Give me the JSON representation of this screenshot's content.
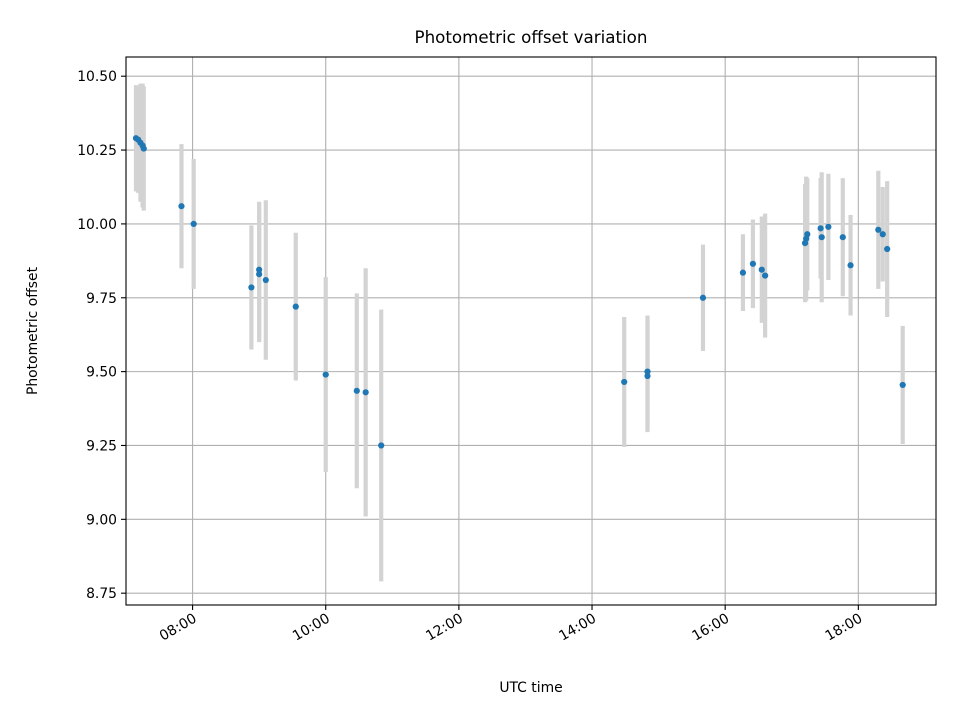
{
  "chart_data": {
    "type": "scatter",
    "title": "Photometric offset variation",
    "xlabel": "UTC time",
    "ylabel": "Photometric offset",
    "xlim": [
      "07:00",
      "19:10"
    ],
    "ylim": [
      8.71,
      10.565
    ],
    "x_ticks": [
      "08:00",
      "10:00",
      "12:00",
      "14:00",
      "16:00",
      "18:00"
    ],
    "y_ticks": [
      "8.75",
      "9.00",
      "9.25",
      "9.50",
      "9.75",
      "10.00",
      "10.25",
      "10.50"
    ],
    "grid": true,
    "colors": {
      "points": "#1f77b4",
      "error_bars": "#d3d3d3",
      "grid": "#b0b0b0"
    },
    "series": [
      {
        "points": [
          {
            "x": "07:09",
            "y": 10.29,
            "yerr": 0.18
          },
          {
            "x": "07:11",
            "y": 10.285,
            "yerr": 0.18
          },
          {
            "x": "07:13",
            "y": 10.275,
            "yerr": 0.2
          },
          {
            "x": "07:15",
            "y": 10.265,
            "yerr": 0.21
          },
          {
            "x": "07:16",
            "y": 10.255,
            "yerr": 0.21
          },
          {
            "x": "07:50",
            "y": 10.06,
            "yerr": 0.21
          },
          {
            "x": "08:01",
            "y": 10.0,
            "yerr": 0.22
          },
          {
            "x": "08:53",
            "y": 9.785,
            "yerr": 0.21
          },
          {
            "x": "09:00",
            "y": 9.845,
            "yerr": 0.23
          },
          {
            "x": "09:00",
            "y": 9.83,
            "yerr": 0.23
          },
          {
            "x": "09:06",
            "y": 9.81,
            "yerr": 0.27
          },
          {
            "x": "09:33",
            "y": 9.72,
            "yerr": 0.25
          },
          {
            "x": "10:00",
            "y": 9.49,
            "yerr": 0.33
          },
          {
            "x": "10:28",
            "y": 9.435,
            "yerr": 0.33
          },
          {
            "x": "10:36",
            "y": 9.43,
            "yerr": 0.42
          },
          {
            "x": "10:50",
            "y": 9.25,
            "yerr": 0.46
          },
          {
            "x": "14:29",
            "y": 9.465,
            "yerr": 0.22
          },
          {
            "x": "14:50",
            "y": 9.5,
            "yerr": 0.19
          },
          {
            "x": "14:50",
            "y": 9.485,
            "yerr": 0.19
          },
          {
            "x": "15:40",
            "y": 9.75,
            "yerr": 0.18
          },
          {
            "x": "16:16",
            "y": 9.835,
            "yerr": 0.13
          },
          {
            "x": "16:25",
            "y": 9.865,
            "yerr": 0.15
          },
          {
            "x": "16:33",
            "y": 9.845,
            "yerr": 0.18
          },
          {
            "x": "16:36",
            "y": 9.825,
            "yerr": 0.21
          },
          {
            "x": "17:12",
            "y": 9.935,
            "yerr": 0.2
          },
          {
            "x": "17:13",
            "y": 9.95,
            "yerr": 0.21
          },
          {
            "x": "17:14",
            "y": 9.965,
            "yerr": 0.19
          },
          {
            "x": "17:26",
            "y": 9.985,
            "yerr": 0.17
          },
          {
            "x": "17:27",
            "y": 9.955,
            "yerr": 0.22
          },
          {
            "x": "17:33",
            "y": 9.99,
            "yerr": 0.18
          },
          {
            "x": "17:46",
            "y": 9.955,
            "yerr": 0.2
          },
          {
            "x": "17:53",
            "y": 9.86,
            "yerr": 0.17
          },
          {
            "x": "18:18",
            "y": 9.98,
            "yerr": 0.2
          },
          {
            "x": "18:22",
            "y": 9.965,
            "yerr": 0.16
          },
          {
            "x": "18:26",
            "y": 9.915,
            "yerr": 0.23
          },
          {
            "x": "18:40",
            "y": 9.455,
            "yerr": 0.2
          }
        ]
      }
    ]
  }
}
